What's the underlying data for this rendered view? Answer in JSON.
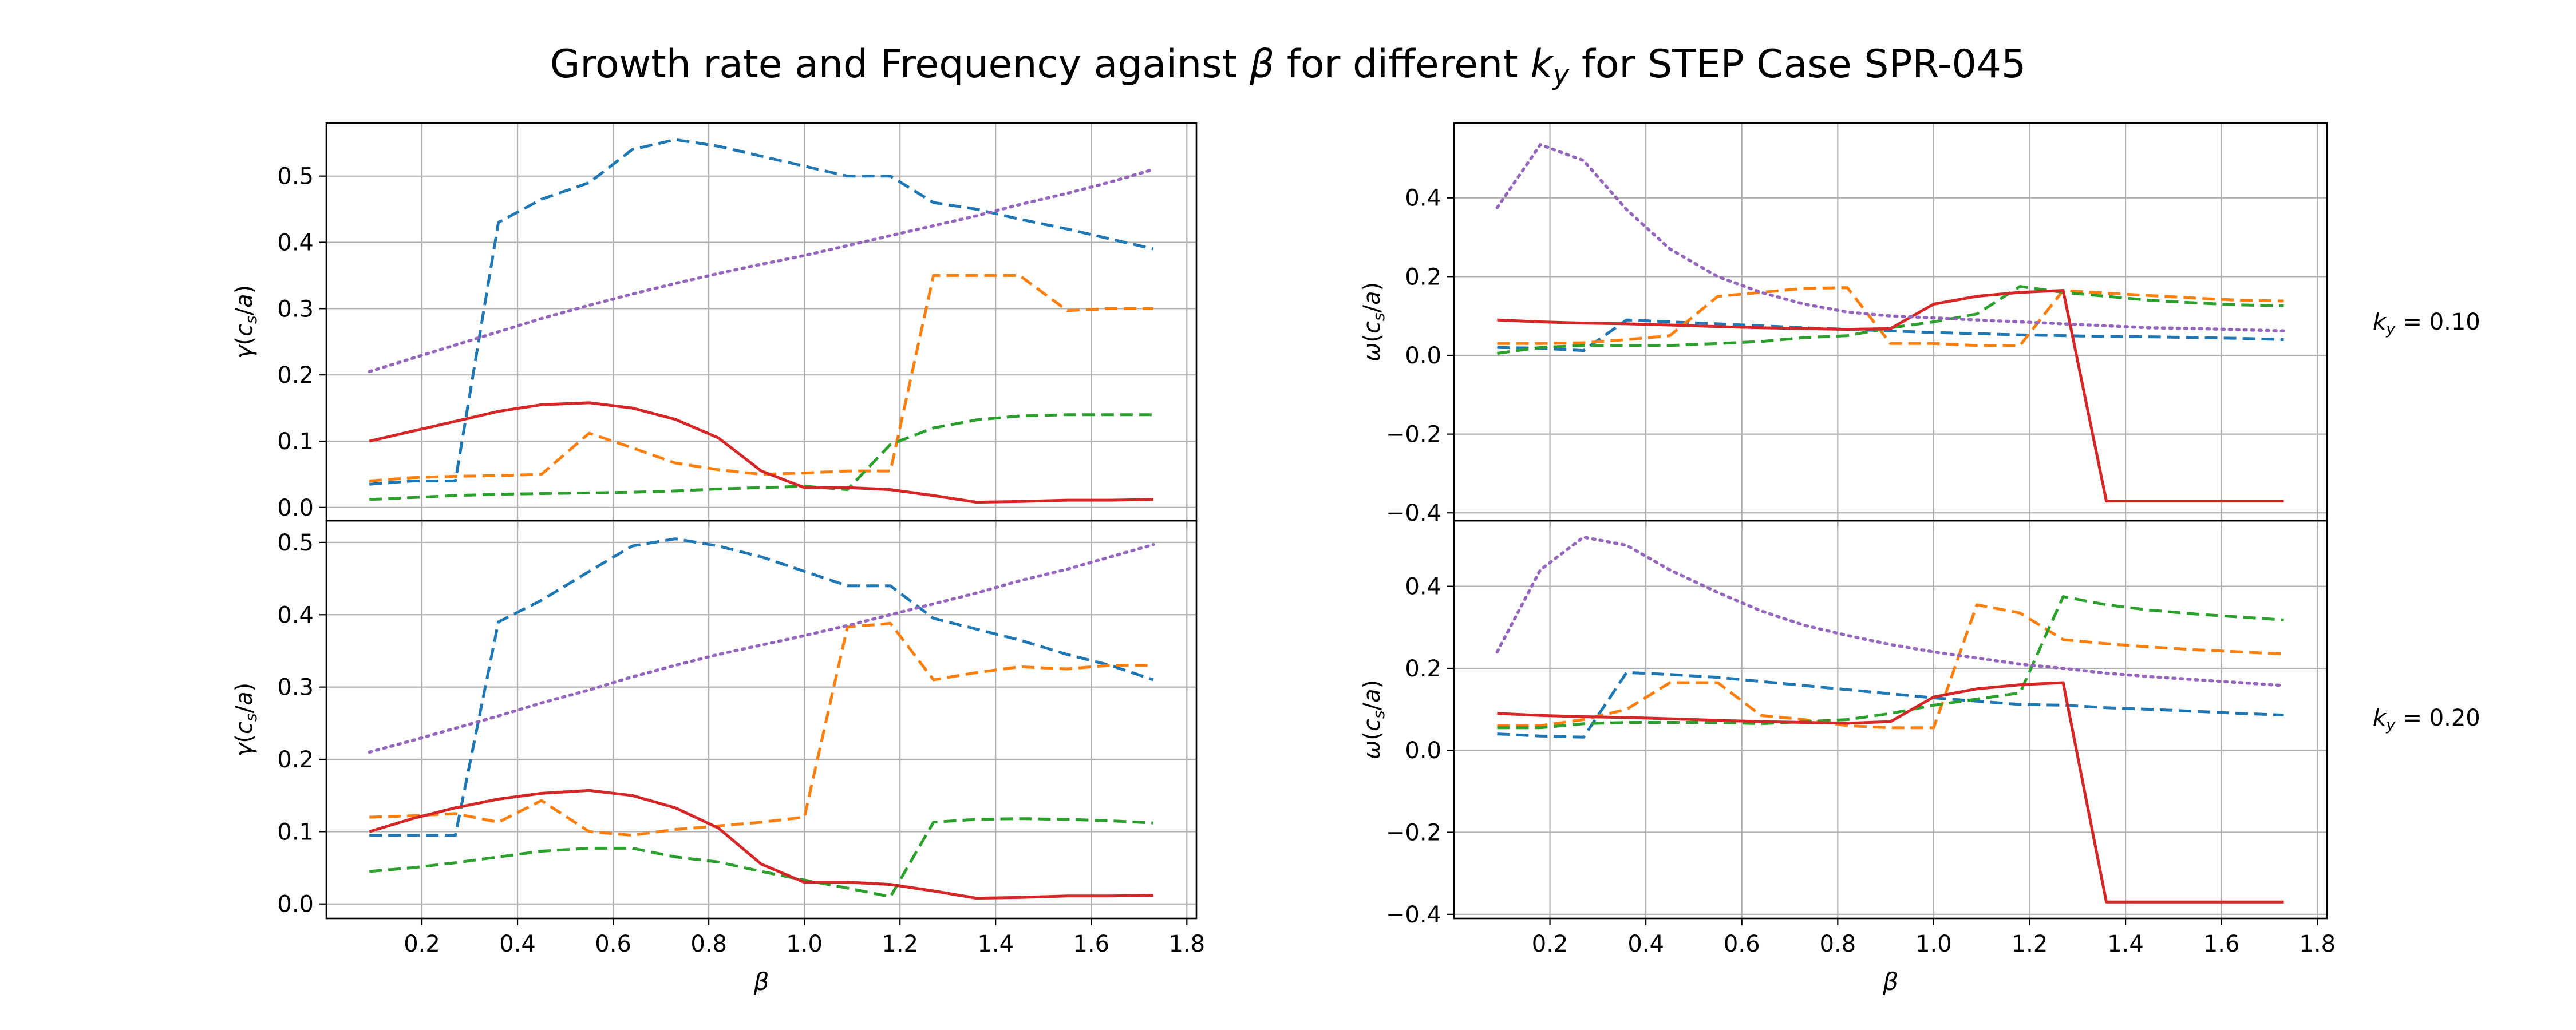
{
  "figure": {
    "title_prefix": "Growth rate and Frequency against ",
    "title_beta": "β",
    "title_mid": " for different ",
    "title_k": "k",
    "title_k_sub": "y",
    "title_suffix": " for STEP Case SPR-045"
  },
  "row_labels": [
    {
      "prefix": "k",
      "sub": "y",
      "value": " = 0.10"
    },
    {
      "prefix": "k",
      "sub": "y",
      "value": " = 0.20"
    }
  ],
  "colors": {
    "blue": "#1f77b4",
    "orange": "#ff7f0e",
    "green": "#2ca02c",
    "red": "#d62728",
    "purple": "#9467bd",
    "grid": "#b0b0b0"
  },
  "chart_data": [
    {
      "type": "line",
      "panel": "growth-rate-ky-0.10",
      "title": "",
      "xlabel": "β",
      "ylabel": "γ(c_s/a)",
      "xlim": [
        0.0,
        1.82
      ],
      "ylim": [
        -0.02,
        0.58
      ],
      "xticks": [
        0.2,
        0.4,
        0.6,
        0.8,
        1.0,
        1.2,
        1.4,
        1.6,
        1.8
      ],
      "yticks": [
        0.0,
        0.1,
        0.2,
        0.3,
        0.4,
        0.5
      ],
      "show_xticklabels": false,
      "grid": true,
      "series": [
        {
          "color": "blue",
          "style": "dashed",
          "x": [
            0.09,
            0.18,
            0.27,
            0.36,
            0.45,
            0.55,
            0.64,
            0.73,
            0.82,
            0.91,
            1.0,
            1.09,
            1.18,
            1.27,
            1.36,
            1.45,
            1.55,
            1.64,
            1.73
          ],
          "y": [
            0.035,
            0.04,
            0.04,
            0.43,
            0.465,
            0.49,
            0.54,
            0.555,
            0.545,
            0.53,
            0.515,
            0.5,
            0.5,
            0.46,
            0.45,
            0.435,
            0.42,
            0.405,
            0.39
          ]
        },
        {
          "color": "orange",
          "style": "dashed",
          "x": [
            0.09,
            0.18,
            0.27,
            0.36,
            0.45,
            0.55,
            0.64,
            0.73,
            0.82,
            0.91,
            1.0,
            1.09,
            1.18,
            1.27,
            1.36,
            1.45,
            1.55,
            1.64,
            1.73
          ],
          "y": [
            0.04,
            0.045,
            0.047,
            0.048,
            0.05,
            0.112,
            0.09,
            0.067,
            0.057,
            0.05,
            0.052,
            0.055,
            0.055,
            0.35,
            0.35,
            0.35,
            0.297,
            0.3,
            0.3
          ]
        },
        {
          "color": "green",
          "style": "dashed",
          "x": [
            0.09,
            0.18,
            0.27,
            0.36,
            0.45,
            0.55,
            0.64,
            0.73,
            0.82,
            0.91,
            1.0,
            1.09,
            1.18,
            1.27,
            1.36,
            1.45,
            1.55,
            1.64,
            1.73
          ],
          "y": [
            0.012,
            0.015,
            0.018,
            0.02,
            0.021,
            0.022,
            0.023,
            0.025,
            0.028,
            0.03,
            0.032,
            0.027,
            0.095,
            0.12,
            0.132,
            0.138,
            0.14,
            0.14,
            0.14
          ]
        },
        {
          "color": "red",
          "style": "solid",
          "x": [
            0.09,
            0.18,
            0.27,
            0.36,
            0.45,
            0.55,
            0.64,
            0.73,
            0.82,
            0.91,
            1.0,
            1.09,
            1.18,
            1.27,
            1.36,
            1.45,
            1.55,
            1.64,
            1.73
          ],
          "y": [
            0.1,
            0.115,
            0.13,
            0.145,
            0.155,
            0.158,
            0.15,
            0.133,
            0.105,
            0.055,
            0.03,
            0.03,
            0.027,
            0.018,
            0.008,
            0.009,
            0.011,
            0.011,
            0.012
          ]
        },
        {
          "color": "purple",
          "style": "dotted",
          "x": [
            0.09,
            0.18,
            0.27,
            0.36,
            0.45,
            0.55,
            0.64,
            0.73,
            0.82,
            0.91,
            1.0,
            1.09,
            1.18,
            1.27,
            1.36,
            1.45,
            1.55,
            1.64,
            1.73
          ],
          "y": [
            0.205,
            0.225,
            0.245,
            0.265,
            0.285,
            0.305,
            0.322,
            0.338,
            0.353,
            0.367,
            0.38,
            0.395,
            0.41,
            0.425,
            0.44,
            0.457,
            0.474,
            0.491,
            0.51
          ]
        }
      ]
    },
    {
      "type": "line",
      "panel": "growth-rate-ky-0.20",
      "title": "",
      "xlabel": "β",
      "ylabel": "γ(c_s/a)",
      "xlim": [
        0.0,
        1.82
      ],
      "ylim": [
        -0.02,
        0.53
      ],
      "xticks": [
        0.2,
        0.4,
        0.6,
        0.8,
        1.0,
        1.2,
        1.4,
        1.6,
        1.8
      ],
      "yticks": [
        0.0,
        0.1,
        0.2,
        0.3,
        0.4,
        0.5
      ],
      "show_xticklabels": true,
      "grid": true,
      "series": [
        {
          "color": "blue",
          "style": "dashed",
          "x": [
            0.09,
            0.18,
            0.27,
            0.36,
            0.45,
            0.55,
            0.64,
            0.73,
            0.82,
            0.91,
            1.0,
            1.09,
            1.18,
            1.27,
            1.36,
            1.45,
            1.55,
            1.64,
            1.73
          ],
          "y": [
            0.095,
            0.095,
            0.095,
            0.39,
            0.42,
            0.46,
            0.495,
            0.505,
            0.495,
            0.48,
            0.46,
            0.44,
            0.44,
            0.395,
            0.38,
            0.365,
            0.345,
            0.33,
            0.31
          ]
        },
        {
          "color": "orange",
          "style": "dashed",
          "x": [
            0.09,
            0.18,
            0.27,
            0.36,
            0.45,
            0.55,
            0.64,
            0.73,
            0.82,
            0.91,
            1.0,
            1.09,
            1.18,
            1.27,
            1.36,
            1.45,
            1.55,
            1.64,
            1.73
          ],
          "y": [
            0.12,
            0.122,
            0.125,
            0.113,
            0.143,
            0.1,
            0.095,
            0.103,
            0.108,
            0.113,
            0.12,
            0.383,
            0.388,
            0.31,
            0.32,
            0.328,
            0.325,
            0.33,
            0.33
          ]
        },
        {
          "color": "green",
          "style": "dashed",
          "x": [
            0.09,
            0.18,
            0.27,
            0.36,
            0.45,
            0.55,
            0.64,
            0.73,
            0.82,
            0.91,
            1.0,
            1.09,
            1.18,
            1.27,
            1.36,
            1.45,
            1.55,
            1.64,
            1.73
          ],
          "y": [
            0.045,
            0.05,
            0.057,
            0.065,
            0.073,
            0.077,
            0.077,
            0.065,
            0.058,
            0.045,
            0.033,
            0.022,
            0.01,
            0.113,
            0.117,
            0.118,
            0.117,
            0.115,
            0.112
          ]
        },
        {
          "color": "red",
          "style": "solid",
          "x": [
            0.09,
            0.18,
            0.27,
            0.36,
            0.45,
            0.55,
            0.64,
            0.73,
            0.82,
            0.91,
            1.0,
            1.09,
            1.18,
            1.27,
            1.36,
            1.45,
            1.55,
            1.64,
            1.73
          ],
          "y": [
            0.1,
            0.118,
            0.133,
            0.145,
            0.153,
            0.157,
            0.15,
            0.133,
            0.105,
            0.055,
            0.03,
            0.03,
            0.027,
            0.018,
            0.008,
            0.009,
            0.011,
            0.011,
            0.012
          ]
        },
        {
          "color": "purple",
          "style": "dotted",
          "x": [
            0.09,
            0.18,
            0.27,
            0.36,
            0.45,
            0.55,
            0.64,
            0.73,
            0.82,
            0.91,
            1.0,
            1.09,
            1.18,
            1.27,
            1.36,
            1.45,
            1.55,
            1.64,
            1.73
          ],
          "y": [
            0.21,
            0.226,
            0.243,
            0.26,
            0.278,
            0.296,
            0.314,
            0.33,
            0.345,
            0.358,
            0.371,
            0.385,
            0.4,
            0.415,
            0.43,
            0.447,
            0.463,
            0.48,
            0.497
          ]
        }
      ]
    },
    {
      "type": "line",
      "panel": "frequency-ky-0.10",
      "title": "",
      "xlabel": "β",
      "ylabel": "ω(c_s/a)",
      "xlim": [
        0.0,
        1.82
      ],
      "ylim": [
        -0.42,
        0.59
      ],
      "xticks": [
        0.2,
        0.4,
        0.6,
        0.8,
        1.0,
        1.2,
        1.4,
        1.6,
        1.8
      ],
      "yticks": [
        -0.4,
        -0.2,
        0.0,
        0.2,
        0.4
      ],
      "show_xticklabels": false,
      "grid": true,
      "series": [
        {
          "color": "blue",
          "style": "dashed",
          "x": [
            0.09,
            0.18,
            0.27,
            0.36,
            0.45,
            0.55,
            0.64,
            0.73,
            0.82,
            0.91,
            1.0,
            1.09,
            1.18,
            1.27,
            1.36,
            1.45,
            1.55,
            1.64,
            1.73
          ],
          "y": [
            0.02,
            0.018,
            0.012,
            0.09,
            0.085,
            0.08,
            0.075,
            0.07,
            0.066,
            0.062,
            0.058,
            0.055,
            0.052,
            0.05,
            0.048,
            0.047,
            0.045,
            0.043,
            0.04
          ]
        },
        {
          "color": "orange",
          "style": "dashed",
          "x": [
            0.09,
            0.18,
            0.27,
            0.36,
            0.45,
            0.55,
            0.64,
            0.73,
            0.82,
            0.91,
            1.0,
            1.09,
            1.18,
            1.27,
            1.36,
            1.45,
            1.55,
            1.64,
            1.73
          ],
          "y": [
            0.03,
            0.03,
            0.032,
            0.04,
            0.05,
            0.15,
            0.16,
            0.17,
            0.172,
            0.03,
            0.03,
            0.025,
            0.025,
            0.165,
            0.158,
            0.152,
            0.145,
            0.14,
            0.138
          ]
        },
        {
          "color": "green",
          "style": "dashed",
          "x": [
            0.09,
            0.18,
            0.27,
            0.36,
            0.45,
            0.55,
            0.64,
            0.73,
            0.82,
            0.91,
            1.0,
            1.09,
            1.18,
            1.27,
            1.36,
            1.45,
            1.55,
            1.64,
            1.73
          ],
          "y": [
            0.005,
            0.02,
            0.025,
            0.025,
            0.025,
            0.03,
            0.035,
            0.045,
            0.05,
            0.07,
            0.085,
            0.105,
            0.175,
            0.16,
            0.15,
            0.14,
            0.133,
            0.128,
            0.126
          ]
        },
        {
          "color": "red",
          "style": "solid",
          "x": [
            0.09,
            0.18,
            0.27,
            0.36,
            0.45,
            0.55,
            0.64,
            0.73,
            0.82,
            0.91,
            1.0,
            1.09,
            1.18,
            1.27,
            1.36,
            1.45,
            1.55,
            1.64,
            1.73
          ],
          "y": [
            0.09,
            0.085,
            0.082,
            0.08,
            0.077,
            0.073,
            0.07,
            0.068,
            0.066,
            0.068,
            0.13,
            0.15,
            0.16,
            0.165,
            -0.37,
            -0.37,
            -0.37,
            -0.37,
            -0.37
          ]
        },
        {
          "color": "purple",
          "style": "dotted",
          "x": [
            0.09,
            0.18,
            0.27,
            0.36,
            0.45,
            0.55,
            0.64,
            0.73,
            0.82,
            0.91,
            1.0,
            1.09,
            1.18,
            1.27,
            1.36,
            1.45,
            1.55,
            1.64,
            1.73
          ],
          "y": [
            0.375,
            0.535,
            0.495,
            0.37,
            0.27,
            0.2,
            0.16,
            0.13,
            0.11,
            0.1,
            0.095,
            0.09,
            0.085,
            0.08,
            0.075,
            0.07,
            0.068,
            0.065,
            0.062
          ]
        }
      ]
    },
    {
      "type": "line",
      "panel": "frequency-ky-0.20",
      "title": "",
      "xlabel": "β",
      "ylabel": "ω(c_s/a)",
      "xlim": [
        0.0,
        1.82
      ],
      "ylim": [
        -0.41,
        0.56
      ],
      "xticks": [
        0.2,
        0.4,
        0.6,
        0.8,
        1.0,
        1.2,
        1.4,
        1.6,
        1.8
      ],
      "yticks": [
        -0.4,
        -0.2,
        0.0,
        0.2,
        0.4
      ],
      "show_xticklabels": true,
      "grid": true,
      "series": [
        {
          "color": "blue",
          "style": "dashed",
          "x": [
            0.09,
            0.18,
            0.27,
            0.36,
            0.45,
            0.55,
            0.64,
            0.73,
            0.82,
            0.91,
            1.0,
            1.09,
            1.18,
            1.27,
            1.36,
            1.45,
            1.55,
            1.64,
            1.73
          ],
          "y": [
            0.04,
            0.035,
            0.032,
            0.19,
            0.185,
            0.178,
            0.168,
            0.158,
            0.148,
            0.138,
            0.128,
            0.12,
            0.112,
            0.11,
            0.104,
            0.1,
            0.095,
            0.09,
            0.086
          ]
        },
        {
          "color": "orange",
          "style": "dashed",
          "x": [
            0.09,
            0.18,
            0.27,
            0.36,
            0.45,
            0.55,
            0.64,
            0.73,
            0.82,
            0.91,
            1.0,
            1.09,
            1.18,
            1.27,
            1.36,
            1.45,
            1.55,
            1.64,
            1.73
          ],
          "y": [
            0.06,
            0.06,
            0.075,
            0.1,
            0.165,
            0.165,
            0.085,
            0.075,
            0.06,
            0.055,
            0.055,
            0.355,
            0.335,
            0.27,
            0.26,
            0.252,
            0.245,
            0.24,
            0.235
          ]
        },
        {
          "color": "green",
          "style": "dashed",
          "x": [
            0.09,
            0.18,
            0.27,
            0.36,
            0.45,
            0.55,
            0.64,
            0.73,
            0.82,
            0.91,
            1.0,
            1.09,
            1.18,
            1.27,
            1.36,
            1.45,
            1.55,
            1.64,
            1.73
          ],
          "y": [
            0.055,
            0.055,
            0.065,
            0.068,
            0.068,
            0.068,
            0.065,
            0.07,
            0.075,
            0.09,
            0.11,
            0.125,
            0.14,
            0.375,
            0.355,
            0.342,
            0.332,
            0.325,
            0.318
          ]
        },
        {
          "color": "red",
          "style": "solid",
          "x": [
            0.09,
            0.18,
            0.27,
            0.36,
            0.45,
            0.55,
            0.64,
            0.73,
            0.82,
            0.91,
            1.0,
            1.09,
            1.18,
            1.27,
            1.36,
            1.45,
            1.55,
            1.64,
            1.73
          ],
          "y": [
            0.09,
            0.085,
            0.082,
            0.08,
            0.077,
            0.073,
            0.07,
            0.068,
            0.066,
            0.07,
            0.13,
            0.15,
            0.16,
            0.165,
            -0.37,
            -0.37,
            -0.37,
            -0.37,
            -0.37
          ]
        },
        {
          "color": "purple",
          "style": "dotted",
          "x": [
            0.09,
            0.18,
            0.27,
            0.36,
            0.45,
            0.55,
            0.64,
            0.73,
            0.82,
            0.91,
            1.0,
            1.09,
            1.18,
            1.27,
            1.36,
            1.45,
            1.55,
            1.64,
            1.73
          ],
          "y": [
            0.24,
            0.44,
            0.52,
            0.5,
            0.44,
            0.385,
            0.34,
            0.305,
            0.28,
            0.258,
            0.24,
            0.225,
            0.21,
            0.2,
            0.188,
            0.18,
            0.172,
            0.165,
            0.158
          ]
        }
      ]
    }
  ]
}
